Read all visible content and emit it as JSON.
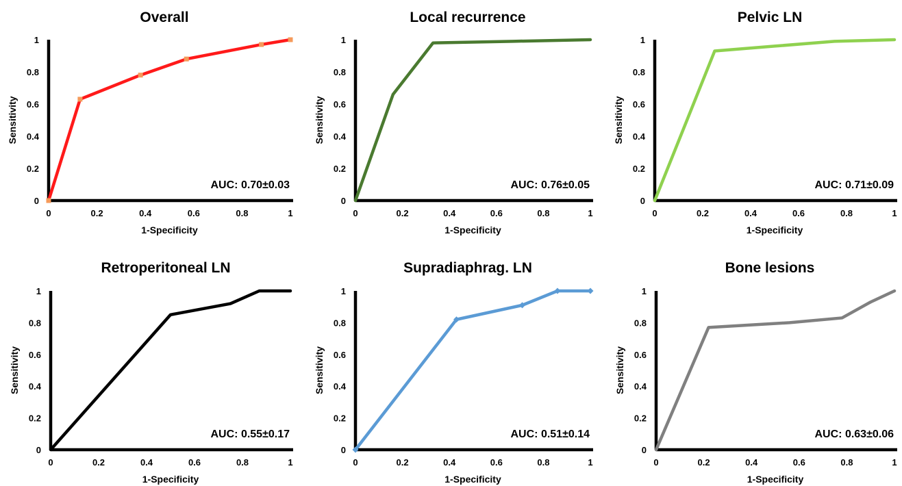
{
  "figure": {
    "axis_x_label": "1-Specificity",
    "axis_y_label": "Sensitivity"
  },
  "chart_data": [
    {
      "type": "line",
      "title": "Overall",
      "xlabel": "1-Specificity",
      "ylabel": "Sensitivity",
      "xlim": [
        0,
        1
      ],
      "ylim": [
        0,
        1
      ],
      "x_ticks": [
        "0",
        "0.2",
        "0.4",
        "0.6",
        "0.8",
        "1"
      ],
      "y_ticks": [
        "0",
        "0.2",
        "0.4",
        "0.6",
        "0.8",
        "1"
      ],
      "annotation": "AUC: 0.70±0.03",
      "color": "#ff1a1a",
      "marker_color": "#f59a5a",
      "markers": true,
      "series": [
        {
          "x": [
            0,
            0.13,
            0.38,
            0.57,
            0.88,
            1.0
          ],
          "y": [
            0,
            0.63,
            0.78,
            0.88,
            0.97,
            1.0
          ]
        }
      ]
    },
    {
      "type": "line",
      "title": "Local recurrence",
      "xlabel": "1-Specificity",
      "ylabel": "Sensitivity",
      "xlim": [
        0,
        1
      ],
      "ylim": [
        0,
        1
      ],
      "x_ticks": [
        "0",
        "0.2",
        "0.4",
        "0.6",
        "0.8",
        "1"
      ],
      "y_ticks": [
        "0",
        "0.2",
        "0.4",
        "0.6",
        "0.8",
        "1"
      ],
      "annotation": "AUC: 0.76±0.05",
      "color": "#4a7a30",
      "markers": false,
      "series": [
        {
          "x": [
            0,
            0.16,
            0.33,
            0.67,
            1.0
          ],
          "y": [
            0,
            0.66,
            0.98,
            0.99,
            1.0
          ]
        }
      ]
    },
    {
      "type": "line",
      "title": "Pelvic LN",
      "xlabel": "1-Specificity",
      "ylabel": "Sensitivity",
      "xlim": [
        0,
        1
      ],
      "ylim": [
        0,
        1
      ],
      "x_ticks": [
        "0",
        "0.2",
        "0.4",
        "0.6",
        "0.8",
        "1"
      ],
      "y_ticks": [
        "0",
        "0.2",
        "0.4",
        "0.6",
        "0.8",
        "1"
      ],
      "annotation": "AUC: 0.71±0.09",
      "color": "#8fd14f",
      "markers": false,
      "series": [
        {
          "x": [
            0,
            0.25,
            0.5,
            0.75,
            1.0
          ],
          "y": [
            0,
            0.93,
            0.96,
            0.99,
            1.0
          ]
        }
      ]
    },
    {
      "type": "line",
      "title": "Retroperitoneal LN",
      "xlabel": "1-Specificity",
      "ylabel": "Sensitivity",
      "xlim": [
        0,
        1
      ],
      "ylim": [
        0,
        1
      ],
      "x_ticks": [
        "0",
        "0.2",
        "0.4",
        "0.6",
        "0.8",
        "1"
      ],
      "y_ticks": [
        "0",
        "0.2",
        "0.4",
        "0.6",
        "0.8",
        "1"
      ],
      "annotation": "AUC: 0.55±0.17",
      "color": "#000000",
      "markers": false,
      "series": [
        {
          "x": [
            0,
            0.5,
            0.75,
            0.87,
            1.0
          ],
          "y": [
            0,
            0.85,
            0.92,
            1.0,
            1.0
          ]
        }
      ]
    },
    {
      "type": "line",
      "title": "Supradiaphrag. LN",
      "xlabel": "1-Specificity",
      "ylabel": "Sensitivity",
      "xlim": [
        0,
        1
      ],
      "ylim": [
        0,
        1
      ],
      "x_ticks": [
        "0",
        "0.2",
        "0.4",
        "0.6",
        "0.8",
        "1"
      ],
      "y_ticks": [
        "0",
        "0.2",
        "0.4",
        "0.6",
        "0.8",
        "1"
      ],
      "annotation": "AUC: 0.51±0.14",
      "color": "#5b9bd5",
      "marker_color": "#5b9bd5",
      "markers": true,
      "series": [
        {
          "x": [
            0,
            0.43,
            0.71,
            0.86,
            1.0
          ],
          "y": [
            0,
            0.82,
            0.91,
            1.0,
            1.0
          ]
        }
      ]
    },
    {
      "type": "line",
      "title": "Bone lesions",
      "xlabel": "1-Specificity",
      "ylabel": "Sensitivity",
      "xlim": [
        0,
        1
      ],
      "ylim": [
        0,
        1
      ],
      "x_ticks": [
        "0",
        "0.2",
        "0.4",
        "0.6",
        "0.8",
        "1"
      ],
      "y_ticks": [
        "0",
        "0.2",
        "0.4",
        "0.6",
        "0.8",
        "1"
      ],
      "annotation": "AUC: 0.63±0.06",
      "color": "#808080",
      "markers": false,
      "series": [
        {
          "x": [
            0,
            0.22,
            0.56,
            0.78,
            0.9,
            1.0
          ],
          "y": [
            0,
            0.77,
            0.8,
            0.83,
            0.93,
            1.0
          ]
        }
      ]
    }
  ]
}
